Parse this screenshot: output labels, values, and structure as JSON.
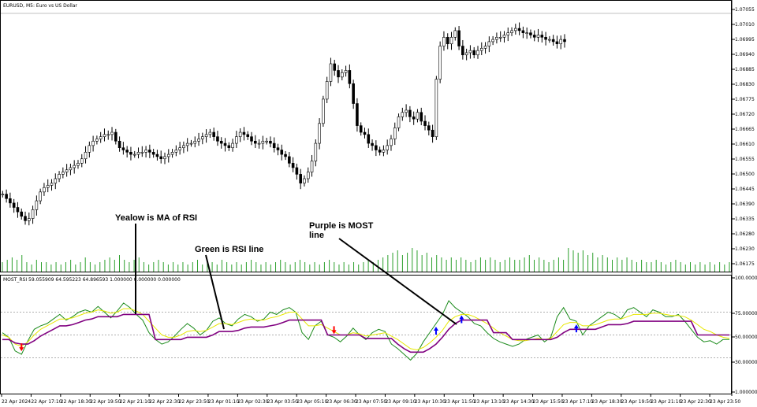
{
  "chart_data": [
    {
      "type": "candlestick",
      "title": "EURUSD, M5: Euro vs US Dollar",
      "y_ticks": [
        "1.07055",
        "1.07010",
        "1.06995",
        "1.06940",
        "1.06885",
        "1.06830",
        "1.06775",
        "1.06720",
        "1.06665",
        "1.06610",
        "1.06555",
        "1.06500",
        "1.06445",
        "1.06390",
        "1.06335",
        "1.06280",
        "1.06230",
        "1.06175"
      ],
      "ylim": [
        1.0614,
        1.0718
      ],
      "close": [
        1.0633,
        1.0631,
        1.0629,
        1.0627,
        1.0625,
        1.0623,
        1.0621,
        1.0622,
        1.0626,
        1.063,
        1.0634,
        1.0636,
        1.0637,
        1.0638,
        1.064,
        1.0642,
        1.0643,
        1.0644,
        1.0645,
        1.0646,
        1.0647,
        1.0649,
        1.0652,
        1.0655,
        1.0657,
        1.0658,
        1.0659,
        1.066,
        1.066,
        1.0661,
        1.0657,
        1.0654,
        1.0653,
        1.0652,
        1.0651,
        1.0651,
        1.0652,
        1.0652,
        1.0653,
        1.0652,
        1.0651,
        1.065,
        1.0649,
        1.065,
        1.0651,
        1.0652,
        1.0653,
        1.0654,
        1.0655,
        1.0656,
        1.0656,
        1.0657,
        1.0658,
        1.0659,
        1.066,
        1.0661,
        1.0659,
        1.0657,
        1.0656,
        1.0655,
        1.0654,
        1.0656,
        1.0659,
        1.0661,
        1.066,
        1.0659,
        1.0657,
        1.0656,
        1.0656,
        1.0657,
        1.0657,
        1.0656,
        1.0654,
        1.0653,
        1.0651,
        1.065,
        1.0647,
        1.0645,
        1.0642,
        1.0638,
        1.064,
        1.0643,
        1.0648,
        1.0656,
        1.0665,
        1.0676,
        1.0684,
        1.0692,
        1.0689,
        1.0686,
        1.0688,
        1.0689,
        1.0683,
        1.0674,
        1.0664,
        1.0661,
        1.066,
        1.0656,
        1.0655,
        1.0653,
        1.0652,
        1.0653,
        1.0655,
        1.0658,
        1.0663,
        1.0668,
        1.067,
        1.0671,
        1.0668,
        1.0667,
        1.067,
        1.0666,
        1.0664,
        1.0662,
        1.0659,
        1.0685,
        1.07,
        1.0704,
        1.0701,
        1.0704,
        1.0707,
        1.07,
        1.0696,
        1.0697,
        1.0698,
        1.0696,
        1.0698,
        1.0699,
        1.07,
        1.0702,
        1.0703,
        1.0704,
        1.0704,
        1.0705,
        1.0706,
        1.0707,
        1.0708,
        1.0707,
        1.0706,
        1.0706,
        1.0705,
        1.0704,
        1.0705,
        1.0704,
        1.0703,
        1.0703,
        1.0702,
        1.0701,
        1.0703,
        1.0702
      ]
    },
    {
      "type": "bar",
      "title": "Volume",
      "values": [
        0.4,
        0.5,
        0.6,
        0.5,
        0.7,
        0.4,
        0.3,
        0.5,
        0.4,
        0.4,
        0.3,
        0.4,
        0.3,
        0.4,
        0.5,
        0.3,
        0.4,
        0.6,
        0.4,
        0.3,
        0.4,
        0.5,
        0.6,
        0.5,
        0.7,
        0.5,
        0.4,
        0.5,
        0.6,
        0.4,
        0.3,
        0.4,
        0.5,
        0.4,
        0.3,
        0.4,
        0.3,
        0.4,
        0.3,
        0.4,
        0.5,
        0.3,
        0.4,
        0.4,
        0.3,
        0.5,
        0.4,
        0.3,
        0.4,
        0.3,
        0.4,
        0.5,
        0.4,
        0.3,
        0.4,
        0.3,
        0.4,
        0.5,
        0.4,
        0.3,
        0.4,
        0.5,
        0.4,
        0.3,
        0.4,
        0.3,
        0.4,
        0.5,
        0.4,
        0.3,
        0.4,
        0.3,
        0.4,
        0.3,
        0.4,
        0.5,
        0.4,
        0.5,
        0.6,
        0.7,
        0.8,
        0.9,
        0.7,
        0.8,
        1.0,
        0.9,
        0.7,
        0.8,
        0.6,
        0.7,
        0.6,
        0.5,
        0.6,
        0.5,
        0.6,
        0.5,
        0.4,
        0.5,
        0.6,
        0.5,
        0.6,
        0.5,
        0.4,
        0.5,
        0.6,
        0.5,
        0.5,
        0.6,
        0.7,
        0.5,
        0.6,
        0.5,
        0.4,
        0.5,
        0.6,
        0.5,
        1.0,
        0.9,
        0.8,
        0.9,
        0.7,
        0.8,
        0.6,
        0.7,
        0.6,
        0.5,
        0.6,
        0.5,
        0.6,
        0.5,
        0.4,
        0.5,
        0.4,
        0.4,
        0.5,
        0.4,
        0.3,
        0.4,
        0.5,
        0.4,
        0.3,
        0.4,
        0.3,
        0.4,
        0.3,
        0.4,
        0.3,
        0.4,
        0.3,
        0.4
      ]
    },
    {
      "type": "line",
      "title": "MOST_RSI 59.055909 64.595223 64.896593 1.000000 0.000000 0.000000",
      "y_ticks": [
        "100.000000",
        "75.000000",
        "50.000000",
        "30.000000",
        "1.000000"
      ],
      "ylim": [
        0,
        100
      ],
      "reference_lines": [
        70,
        50,
        30
      ],
      "series": [
        {
          "name": "RSI",
          "color": "#1a8a1a",
          "values": [
            52,
            48,
            36,
            33,
            45,
            55,
            58,
            60,
            64,
            68,
            63,
            66,
            70,
            72,
            70,
            75,
            70,
            65,
            71,
            78,
            74,
            68,
            63,
            52,
            46,
            42,
            44,
            49,
            55,
            60,
            56,
            50,
            54,
            62,
            65,
            60,
            58,
            64,
            68,
            66,
            62,
            64,
            70,
            68,
            72,
            74,
            70,
            52,
            46,
            58,
            62,
            50,
            48,
            44,
            49,
            56,
            50,
            46,
            52,
            55,
            53,
            42,
            38,
            33,
            28,
            34,
            44,
            52,
            60,
            68,
            80,
            74,
            70,
            66,
            60,
            58,
            52,
            47,
            44,
            42,
            40,
            42,
            46,
            48,
            50,
            44,
            48,
            66,
            74,
            64,
            62,
            50,
            58,
            62,
            66,
            70,
            68,
            64,
            72,
            74,
            70,
            66,
            72,
            70,
            66,
            66,
            68,
            62,
            55,
            48,
            44,
            45,
            42,
            46,
            46
          ]
        },
        {
          "name": "MA of RSI",
          "color": "#e8e800",
          "values": [
            50,
            48,
            42,
            40,
            44,
            50,
            55,
            58,
            61,
            64,
            64,
            65,
            67,
            69,
            70,
            72,
            71,
            69,
            70,
            73,
            73,
            71,
            68,
            62,
            56,
            50,
            48,
            48,
            50,
            53,
            54,
            53,
            54,
            57,
            60,
            60,
            59,
            61,
            63,
            64,
            63,
            63,
            65,
            66,
            68,
            70,
            70,
            64,
            58,
            58,
            59,
            56,
            53,
            50,
            50,
            52,
            51,
            49,
            50,
            51,
            52,
            49,
            46,
            42,
            38,
            37,
            39,
            43,
            48,
            54,
            62,
            66,
            68,
            68,
            66,
            63,
            60,
            56,
            52,
            49,
            46,
            45,
            45,
            46,
            47,
            46,
            47,
            53,
            59,
            61,
            61,
            58,
            58,
            59,
            61,
            63,
            64,
            64,
            66,
            68,
            68,
            68,
            69,
            69,
            68,
            67,
            67,
            66,
            63,
            59,
            55,
            53,
            50,
            48,
            47
          ]
        },
        {
          "name": "MOST",
          "color": "#800080",
          "values": [
            46,
            46,
            43,
            42,
            42,
            45,
            49,
            52,
            55,
            58,
            58,
            59,
            61,
            63,
            64,
            66,
            66,
            66,
            66,
            68,
            68,
            68,
            68,
            68,
            46,
            46,
            46,
            46,
            46,
            48,
            48,
            48,
            48,
            50,
            53,
            53,
            53,
            54,
            56,
            57,
            57,
            57,
            58,
            59,
            61,
            63,
            63,
            63,
            63,
            63,
            63,
            50,
            50,
            50,
            50,
            50,
            50,
            47,
            47,
            47,
            47,
            47,
            42,
            38,
            35,
            35,
            35,
            38,
            42,
            48,
            55,
            60,
            63,
            63,
            63,
            63,
            63,
            52,
            52,
            52,
            46,
            46,
            46,
            46,
            46,
            46,
            46,
            48,
            52,
            55,
            55,
            55,
            55,
            55,
            57,
            59,
            59,
            59,
            60,
            62,
            62,
            62,
            62,
            62,
            62,
            62,
            62,
            62,
            62,
            50,
            50,
            50,
            50,
            50,
            50
          ]
        }
      ],
      "signals": [
        {
          "dir": "down",
          "i": 3,
          "color": "#ff0000"
        },
        {
          "dir": "down",
          "i": 52,
          "color": "#ff0000"
        },
        {
          "dir": "up",
          "i": 68,
          "color": "#0000ff"
        },
        {
          "dir": "up",
          "i": 72,
          "color": "#0000ff"
        },
        {
          "dir": "up",
          "i": 90,
          "color": "#0000ff"
        }
      ]
    }
  ],
  "x_ticks": [
    "22 Apr 2024",
    "22 Apr 17:10",
    "22 Apr 18:30",
    "22 Apr 19:50",
    "22 Apr 21:10",
    "22 Apr 22:30",
    "22 Apr 23:50",
    "23 Apr 01:10",
    "23 Apr 02:30",
    "23 Apr 03:50",
    "23 Apr 05:10",
    "23 Apr 06:30",
    "23 Apr 07:50",
    "23 Apr 09:10",
    "23 Apr 10:30",
    "23 Apr 11:50",
    "23 Apr 13:10",
    "23 Apr 14:30",
    "23 Apr 15:50",
    "23 Apr 17:10",
    "23 Apr 18:30",
    "23 Apr 19:50",
    "23 Apr 21:10",
    "23 Apr 22:30",
    "23 Apr 23:50"
  ],
  "annotations": [
    {
      "label": "Yealow is MA of RSI"
    },
    {
      "label": "Green is RSI line"
    },
    {
      "label": "Purple is MOST",
      "label2": "line"
    }
  ]
}
